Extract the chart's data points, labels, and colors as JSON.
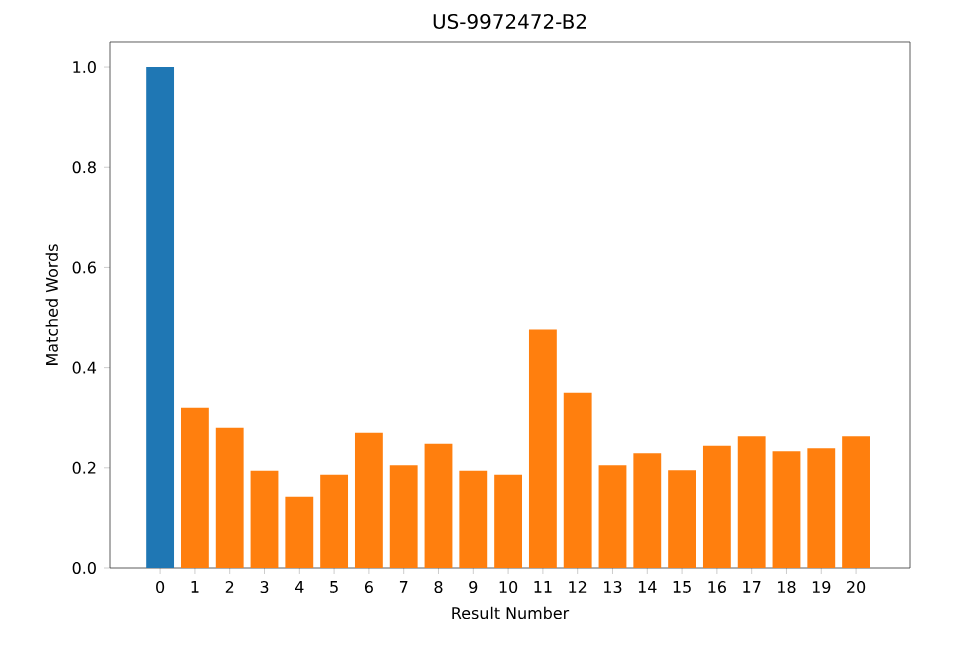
{
  "chart_data": {
    "type": "bar",
    "title": "US-9972472-B2",
    "xlabel": "Result Number",
    "ylabel": "Matched Words",
    "categories": [
      "0",
      "1",
      "2",
      "3",
      "4",
      "5",
      "6",
      "7",
      "8",
      "9",
      "10",
      "11",
      "12",
      "13",
      "14",
      "15",
      "16",
      "17",
      "18",
      "19",
      "20"
    ],
    "values": [
      1.0,
      0.32,
      0.28,
      0.194,
      0.142,
      0.186,
      0.27,
      0.205,
      0.248,
      0.194,
      0.186,
      0.476,
      0.35,
      0.205,
      0.229,
      0.195,
      0.244,
      0.263,
      0.233,
      0.239,
      0.263
    ],
    "colors": [
      "#1f77b4",
      "#ff7f0e",
      "#ff7f0e",
      "#ff7f0e",
      "#ff7f0e",
      "#ff7f0e",
      "#ff7f0e",
      "#ff7f0e",
      "#ff7f0e",
      "#ff7f0e",
      "#ff7f0e",
      "#ff7f0e",
      "#ff7f0e",
      "#ff7f0e",
      "#ff7f0e",
      "#ff7f0e",
      "#ff7f0e",
      "#ff7f0e",
      "#ff7f0e",
      "#ff7f0e",
      "#ff7f0e"
    ],
    "ylim": [
      0,
      1.05
    ],
    "yticks": [
      {
        "value": 0,
        "label": "0.0"
      },
      {
        "value": 0.2,
        "label": "0.2"
      },
      {
        "value": 0.4,
        "label": "0.4"
      },
      {
        "value": 0.6,
        "label": "0.6"
      },
      {
        "value": 0.8,
        "label": "0.8"
      },
      {
        "value": 1.0,
        "label": "1.0"
      }
    ]
  }
}
